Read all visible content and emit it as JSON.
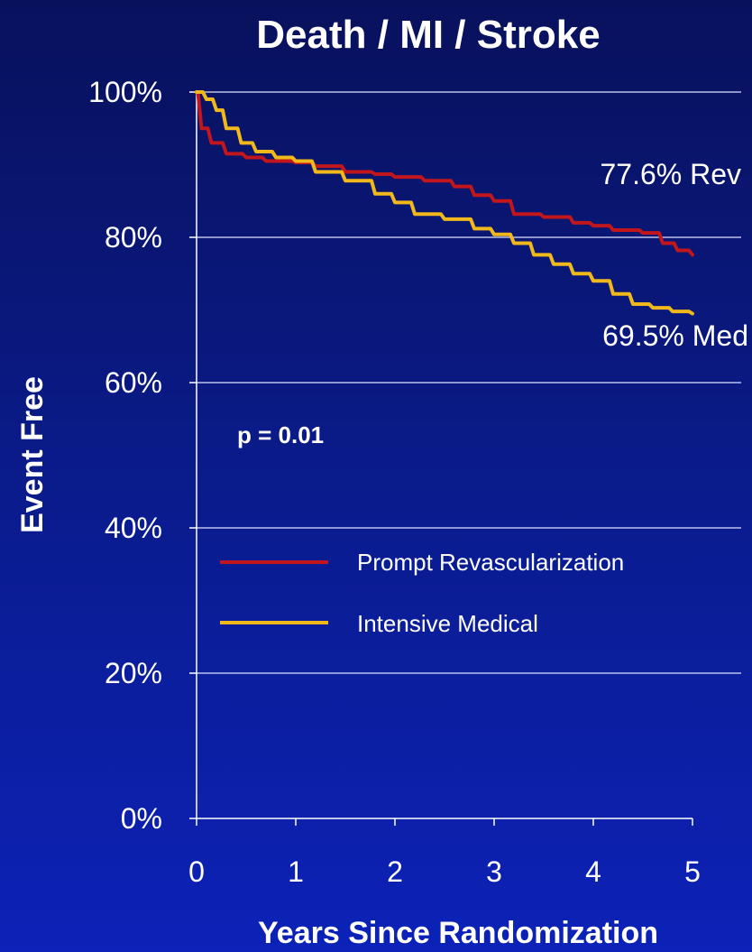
{
  "chart_data": {
    "type": "line",
    "title": "Death / MI / Stroke",
    "xlabel": "Years Since Randomization",
    "ylabel": "Event Free",
    "xlim": [
      0,
      5
    ],
    "ylim": [
      0,
      100
    ],
    "x_ticks": [
      "0",
      "1",
      "2",
      "3",
      "4",
      "5"
    ],
    "y_ticks": [
      "0%",
      "20%",
      "40%",
      "60%",
      "80%",
      "100%"
    ],
    "grid": "horizontal",
    "legend_position": "center-left",
    "p_value_text": "p = 0.01",
    "series": [
      {
        "name": "Prompt Revascularization",
        "color": "#c0161c",
        "end_label": "77.6% Rev",
        "x": [
          0,
          0.05,
          0.15,
          0.3,
          0.5,
          0.7,
          1.0,
          1.2,
          1.5,
          1.8,
          2.0,
          2.3,
          2.6,
          2.8,
          3.0,
          3.2,
          3.5,
          3.8,
          4.0,
          4.2,
          4.5,
          4.7,
          4.85,
          5.0
        ],
        "y": [
          100,
          95,
          93,
          91.5,
          91,
          90.5,
          90.3,
          89.8,
          89,
          88.7,
          88.3,
          87.8,
          87,
          85.8,
          85,
          83.2,
          82.8,
          82,
          81.6,
          81,
          80.6,
          79.2,
          78.2,
          77.6
        ]
      },
      {
        "name": "Intensive Medical",
        "color": "#f0b81a",
        "end_label": "69.5% Med",
        "x": [
          0,
          0.1,
          0.2,
          0.3,
          0.45,
          0.6,
          0.8,
          1.0,
          1.2,
          1.5,
          1.8,
          2.0,
          2.2,
          2.5,
          2.8,
          3.0,
          3.2,
          3.4,
          3.6,
          3.8,
          4.0,
          4.2,
          4.4,
          4.6,
          4.8,
          5.0
        ],
        "y": [
          100,
          99,
          97.5,
          95,
          93,
          91.8,
          91,
          90.5,
          89,
          87.8,
          86,
          84.8,
          83.2,
          82.5,
          81.2,
          80.4,
          79.2,
          77.6,
          76.3,
          75,
          74,
          72.2,
          70.8,
          70.3,
          69.8,
          69.5
        ]
      }
    ]
  }
}
